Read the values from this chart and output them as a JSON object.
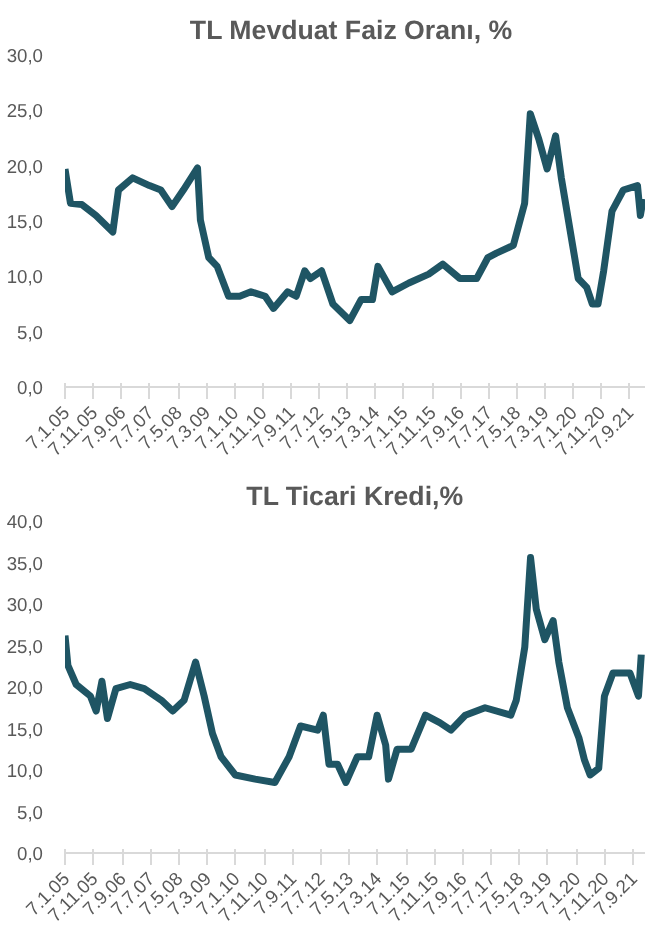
{
  "chart_data": [
    {
      "type": "line",
      "title": "TL  Mevduat Faiz Oranı, %",
      "color": "#1f5564",
      "x": [
        "2005-01",
        "2005-03",
        "2005-07",
        "2005-12",
        "2006-06",
        "2006-08",
        "2007-01",
        "2007-07",
        "2007-11",
        "2008-03",
        "2008-07",
        "2008-12",
        "2009-01",
        "2009-04",
        "2009-07",
        "2009-11",
        "2010-03",
        "2010-07",
        "2010-12",
        "2011-03",
        "2011-08",
        "2011-11",
        "2012-02",
        "2012-04",
        "2012-08",
        "2012-12",
        "2013-06",
        "2013-10",
        "2014-02",
        "2014-04",
        "2014-09",
        "2015-03",
        "2015-10",
        "2016-03",
        "2016-09",
        "2017-03",
        "2017-07",
        "2017-10",
        "2018-04",
        "2018-08",
        "2018-10",
        "2019-01",
        "2019-04",
        "2019-07",
        "2019-09",
        "2020-01",
        "2020-03",
        "2020-06",
        "2020-08",
        "2020-10",
        "2020-12",
        "2021-03",
        "2021-07",
        "2021-12",
        "2022-01",
        "2022-02"
      ],
      "values": [
        19.7,
        16.6,
        16.5,
        15.5,
        14.0,
        17.8,
        18.9,
        18.2,
        17.8,
        16.3,
        17.8,
        19.8,
        15.1,
        11.7,
        10.9,
        8.2,
        8.2,
        8.6,
        8.2,
        7.1,
        8.6,
        8.2,
        10.5,
        9.8,
        10.5,
        7.5,
        6.0,
        7.9,
        7.9,
        10.9,
        8.6,
        9.4,
        10.2,
        11.1,
        9.8,
        9.8,
        11.7,
        12.1,
        12.8,
        16.6,
        24.7,
        22.4,
        19.7,
        22.7,
        18.9,
        12.8,
        9.8,
        9.0,
        7.5,
        7.5,
        10.5,
        15.9,
        17.8,
        18.2,
        15.5,
        17.0
      ],
      "xlim": [
        "2005-01-01",
        "2022-02-20"
      ],
      "ylim": [
        0,
        30
      ],
      "yticks": [
        {
          "value": 0,
          "label": "0,0"
        },
        {
          "value": 5,
          "label": "5,0"
        },
        {
          "value": 10,
          "label": "10,0"
        },
        {
          "value": 15,
          "label": "15,0"
        },
        {
          "value": 20,
          "label": "20,0"
        },
        {
          "value": 25,
          "label": "25,0"
        },
        {
          "value": 30,
          "label": "30,0"
        }
      ],
      "xticks": [
        {
          "value": "2005-01-07",
          "label": "7.1.05"
        },
        {
          "value": "2005-11-07",
          "label": "7.11.05"
        },
        {
          "value": "2006-09-07",
          "label": "7.9.06"
        },
        {
          "value": "2007-07-07",
          "label": "7.7.07"
        },
        {
          "value": "2008-05-07",
          "label": "7.5.08"
        },
        {
          "value": "2009-03-07",
          "label": "7.3.09"
        },
        {
          "value": "2010-01-07",
          "label": "7.1.10"
        },
        {
          "value": "2010-11-07",
          "label": "7.11.10"
        },
        {
          "value": "2011-09-07",
          "label": "7.9.11"
        },
        {
          "value": "2012-07-07",
          "label": "7.7.12"
        },
        {
          "value": "2013-05-07",
          "label": "7.5.13"
        },
        {
          "value": "2014-03-07",
          "label": "7.3.14"
        },
        {
          "value": "2015-01-07",
          "label": "7.1.15"
        },
        {
          "value": "2015-11-07",
          "label": "7.11.15"
        },
        {
          "value": "2016-09-07",
          "label": "7.9.16"
        },
        {
          "value": "2017-07-07",
          "label": "7.7.17"
        },
        {
          "value": "2018-05-07",
          "label": "7.5.18"
        },
        {
          "value": "2019-03-07",
          "label": "7.3.19"
        },
        {
          "value": "2020-01-07",
          "label": "7.1.20"
        },
        {
          "value": "2020-11-07",
          "label": "7.11.20"
        },
        {
          "value": "2021-09-07",
          "label": "7.9.21"
        }
      ],
      "grid": false
    },
    {
      "type": "line",
      "title": "TL Ticari Kredi,%",
      "color": "#1f5564",
      "x": [
        "2005-01",
        "2005-02",
        "2005-05",
        "2005-10",
        "2005-12",
        "2006-02",
        "2006-04",
        "2006-07",
        "2006-12",
        "2007-05",
        "2007-11",
        "2008-03",
        "2008-07",
        "2008-11",
        "2009-02",
        "2009-05",
        "2009-08",
        "2010-01",
        "2010-08",
        "2011-03",
        "2011-08",
        "2011-12",
        "2012-06",
        "2012-08",
        "2012-10",
        "2013-01",
        "2013-04",
        "2013-08",
        "2013-12",
        "2014-03",
        "2014-06",
        "2014-07",
        "2014-10",
        "2015-03",
        "2015-08",
        "2016-01",
        "2016-05",
        "2016-10",
        "2017-05",
        "2018-02",
        "2018-04",
        "2018-07",
        "2018-09",
        "2018-11",
        "2019-02",
        "2019-05",
        "2019-07",
        "2019-10",
        "2020-02",
        "2020-04",
        "2020-06",
        "2020-09",
        "2020-11",
        "2021-02",
        "2021-08",
        "2021-11",
        "2021-12"
      ],
      "values": [
        26.2,
        22.6,
        20.3,
        18.9,
        17.1,
        20.7,
        16.2,
        19.8,
        20.3,
        19.8,
        18.4,
        17.1,
        18.4,
        23.0,
        18.9,
        14.4,
        11.6,
        9.4,
        8.9,
        8.5,
        11.6,
        15.3,
        14.8,
        16.6,
        10.7,
        10.7,
        8.5,
        11.6,
        11.6,
        16.6,
        13.0,
        8.9,
        12.5,
        12.5,
        16.6,
        15.7,
        14.8,
        16.6,
        17.5,
        16.6,
        18.4,
        24.8,
        35.6,
        29.4,
        25.7,
        28.0,
        23.0,
        17.5,
        13.9,
        11.2,
        9.4,
        10.2,
        18.9,
        21.7,
        21.7,
        18.9,
        23.9
      ],
      "xlim": [
        "2005-01-01",
        "2022-01-10"
      ],
      "ylim": [
        0,
        40
      ],
      "yticks": [
        {
          "value": 0,
          "label": "0,0"
        },
        {
          "value": 5,
          "label": "5,0"
        },
        {
          "value": 10,
          "label": "10,0"
        },
        {
          "value": 15,
          "label": "15,0"
        },
        {
          "value": 20,
          "label": "20,0"
        },
        {
          "value": 25,
          "label": "25,0"
        },
        {
          "value": 30,
          "label": "30,0"
        },
        {
          "value": 35,
          "label": "35,0"
        },
        {
          "value": 40,
          "label": "40,0"
        }
      ],
      "xticks": [
        {
          "value": "2005-01-07",
          "label": "7.1.05"
        },
        {
          "value": "2005-11-07",
          "label": "7.11.05"
        },
        {
          "value": "2006-09-07",
          "label": "7.9.06"
        },
        {
          "value": "2007-07-07",
          "label": "7.7.07"
        },
        {
          "value": "2008-05-07",
          "label": "7.5.08"
        },
        {
          "value": "2009-03-07",
          "label": "7.3.09"
        },
        {
          "value": "2010-01-07",
          "label": "7.1.10"
        },
        {
          "value": "2010-11-07",
          "label": "7.11.10"
        },
        {
          "value": "2011-09-07",
          "label": "7.9.11"
        },
        {
          "value": "2012-07-07",
          "label": "7.7.12"
        },
        {
          "value": "2013-05-07",
          "label": "7.5.13"
        },
        {
          "value": "2014-03-07",
          "label": "7.3.14"
        },
        {
          "value": "2015-01-07",
          "label": "7.1.15"
        },
        {
          "value": "2015-11-07",
          "label": "7.11.15"
        },
        {
          "value": "2016-09-07",
          "label": "7.9.16"
        },
        {
          "value": "2017-07-07",
          "label": "7.7.17"
        },
        {
          "value": "2018-05-07",
          "label": "7.5.18"
        },
        {
          "value": "2019-03-07",
          "label": "7.3.19"
        },
        {
          "value": "2020-01-07",
          "label": "7.1.20"
        },
        {
          "value": "2020-11-07",
          "label": "7.11.20"
        },
        {
          "value": "2021-09-07",
          "label": "7.9.21"
        }
      ],
      "grid": false
    }
  ]
}
